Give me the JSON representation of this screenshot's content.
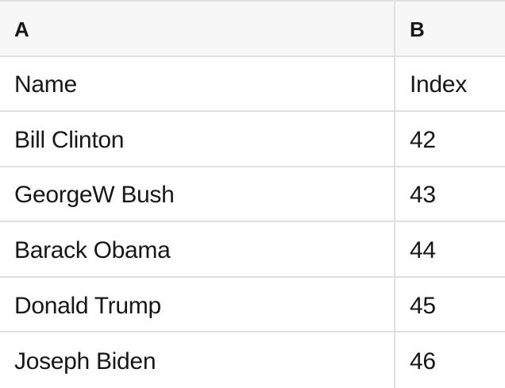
{
  "table": {
    "column_letters": [
      "A",
      "B"
    ],
    "rows": [
      [
        "Name",
        "Index"
      ],
      [
        "Bill Clinton",
        "42"
      ],
      [
        "GeorgeW Bush",
        "43"
      ],
      [
        "Barack Obama",
        "44"
      ],
      [
        "Donald Trump",
        "45"
      ],
      [
        "Joseph Biden",
        "46"
      ]
    ]
  },
  "colors": {
    "header_bg": "#f7f7f7",
    "body_bg": "#ffffff",
    "border": "#e0e0e0",
    "text": "#171717"
  }
}
